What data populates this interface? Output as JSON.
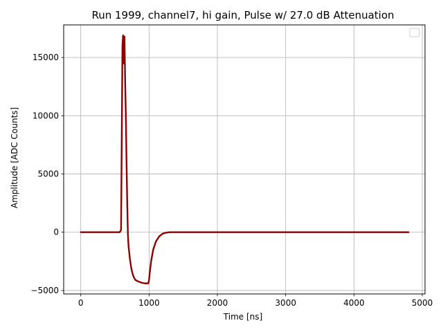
{
  "chart_data": {
    "type": "line",
    "title": "Run 1999, channel7, hi gain, Pulse w/ 27.0 dB Attenuation",
    "xlabel": "Time [ns]",
    "ylabel": "Amplitude [ADC Counts]",
    "xlim": [
      -250,
      5040
    ],
    "ylim": [
      -5300,
      17800
    ],
    "xticks": [
      0,
      1000,
      2000,
      3000,
      4000,
      5000
    ],
    "xtick_labels": [
      "0",
      "1000",
      "2000",
      "3000",
      "4000",
      "5000"
    ],
    "yticks": [
      -5000,
      0,
      5000,
      10000,
      15000
    ],
    "ytick_labels": [
      "−5000",
      "0",
      "5000",
      "10000",
      "15000"
    ],
    "grid": true,
    "legend": "top-right",
    "colors": {
      "series": "#8b0000",
      "grid": "#b0b0b0",
      "legend_frame": "#cccccc"
    },
    "series": [
      {
        "x": [
          0,
          300,
          570,
          590,
          600,
          610,
          620,
          630,
          640,
          650,
          660,
          670,
          680,
          690,
          700,
          720,
          740,
          760,
          780,
          800,
          850,
          900,
          950,
          990,
          1000,
          1010,
          1030,
          1060,
          1100,
          1150,
          1200,
          1250,
          1300,
          2000,
          3000,
          4000,
          4800
        ],
        "y": [
          0,
          0,
          0,
          200,
          8000,
          16000,
          16900,
          14500,
          16800,
          13000,
          10000,
          6000,
          2500,
          -200,
          -1200,
          -2300,
          -3100,
          -3600,
          -3900,
          -4100,
          -4250,
          -4350,
          -4400,
          -4380,
          -4100,
          -3500,
          -2500,
          -1500,
          -800,
          -350,
          -120,
          -40,
          0,
          0,
          0,
          0,
          0
        ]
      }
    ]
  }
}
